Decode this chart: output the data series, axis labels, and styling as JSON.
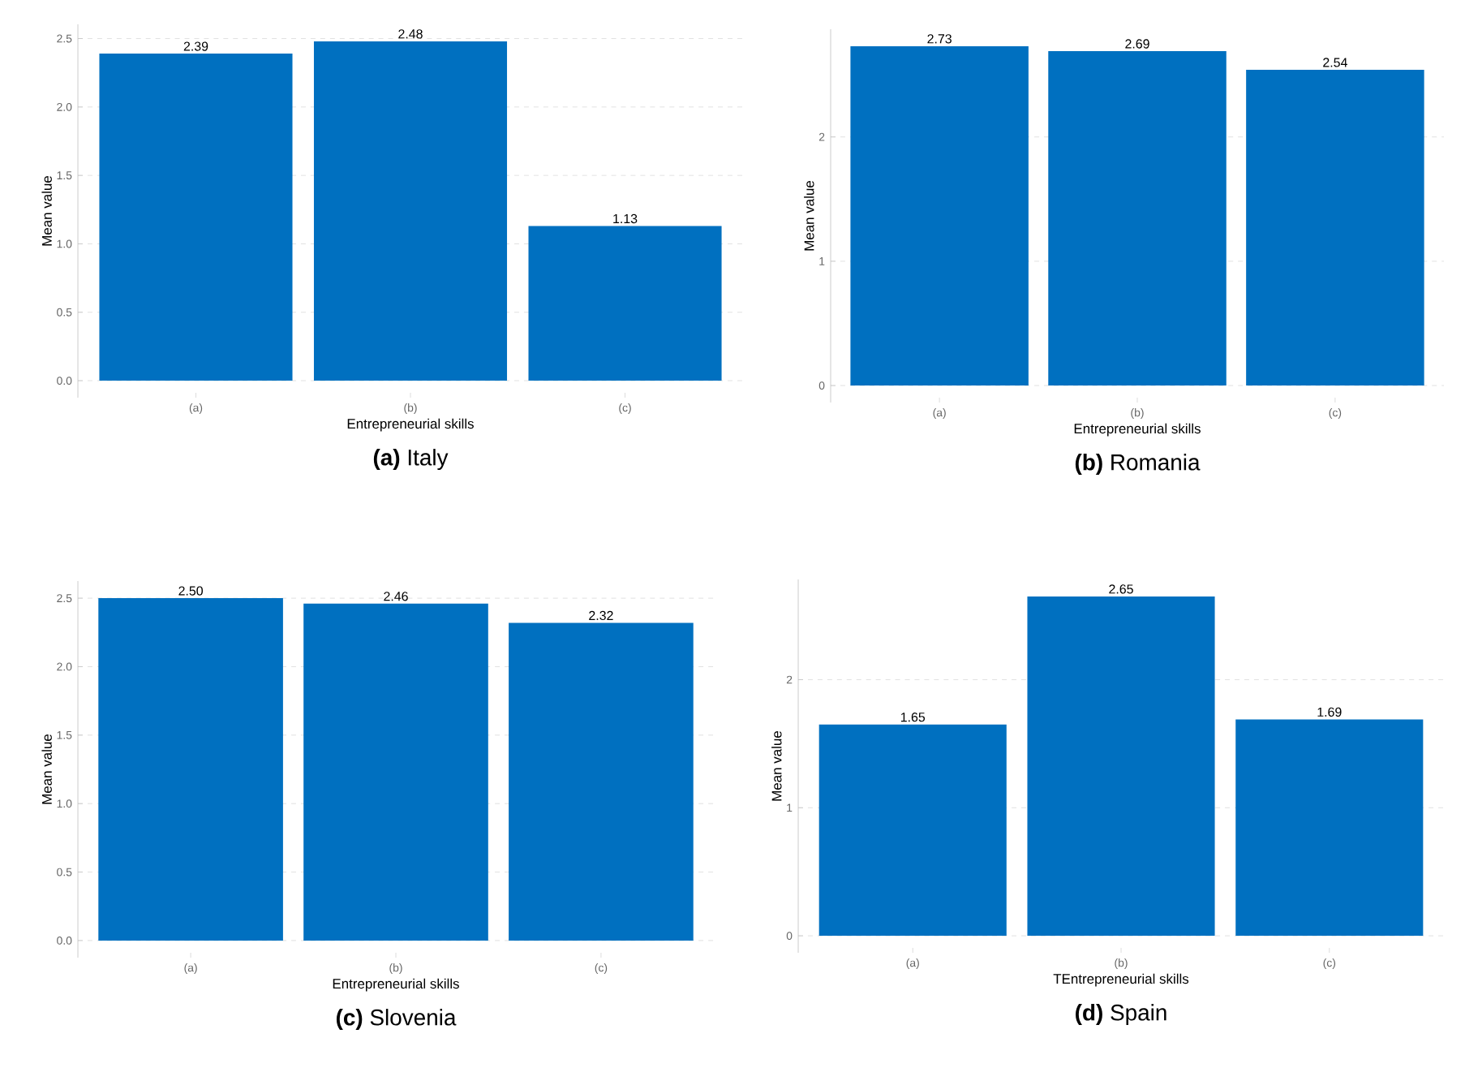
{
  "chart_data": [
    {
      "type": "bar",
      "title": "**(a)** Italy",
      "xlabel": "Entrepreneurial skills",
      "ylabel": "Mean value",
      "categories": [
        "(a)",
        "(b)",
        "(c)"
      ],
      "values": [
        2.39,
        2.48,
        1.13
      ],
      "value_labels": [
        "2.39",
        "2.48",
        "1.13"
      ],
      "color": "#0070c0",
      "ylim": [
        -0.124,
        2.604
      ],
      "yticks": [
        {
          "value": 0,
          "label": "0.0"
        },
        {
          "value": 0.5,
          "label": "0.5"
        },
        {
          "value": 1,
          "label": "1.0"
        },
        {
          "value": 1.5,
          "label": "1.5"
        },
        {
          "value": 2,
          "label": "2.0"
        },
        {
          "value": 2.5,
          "label": "2.5"
        }
      ],
      "grid": "y"
    },
    {
      "type": "bar",
      "title": "**(b)** Romania",
      "xlabel": "Entrepreneurial skills",
      "ylabel": "Mean value",
      "categories": [
        "(a)",
        "(b)",
        "(c)"
      ],
      "values": [
        2.73,
        2.69,
        2.54
      ],
      "value_labels": [
        "2.73",
        "2.69",
        "2.54"
      ],
      "color": "#0070c0",
      "ylim": [
        -0.1365,
        2.8665
      ],
      "yticks": [
        0,
        1,
        2
      ],
      "grid": "y"
    },
    {
      "type": "bar",
      "title": "**(c)** Slovenia",
      "xlabel": "Entrepreneurial skills",
      "ylabel": "Mean value",
      "categories": [
        "(a)",
        "(b)",
        "(c)"
      ],
      "values": [
        2.5,
        2.46,
        2.32
      ],
      "value_labels": [
        "2.50",
        "2.46",
        "2.32"
      ],
      "color": "#0070c0",
      "ylim": [
        -0.125,
        2.625
      ],
      "yticks": [
        {
          "value": 0,
          "label": "0.0"
        },
        {
          "value": 0.5,
          "label": "0.5"
        },
        {
          "value": 1,
          "label": "1.0"
        },
        {
          "value": 1.5,
          "label": "1.5"
        },
        {
          "value": 2,
          "label": "2.0"
        },
        {
          "value": 2.5,
          "label": "2.5"
        }
      ],
      "grid": "y"
    },
    {
      "type": "bar",
      "title": "**(d)** Spain",
      "xlabel": "TEntrepreneurial skills",
      "ylabel": "Mean value",
      "categories": [
        "(a)",
        "(b)",
        "(c)"
      ],
      "values": [
        1.65,
        2.65,
        1.69
      ],
      "value_labels": [
        "1.65",
        "2.65",
        "1.69"
      ],
      "color": "#0070c0",
      "ylim": [
        -0.1325,
        2.7825
      ],
      "yticks": [
        0,
        1,
        2
      ],
      "grid": "y"
    }
  ]
}
